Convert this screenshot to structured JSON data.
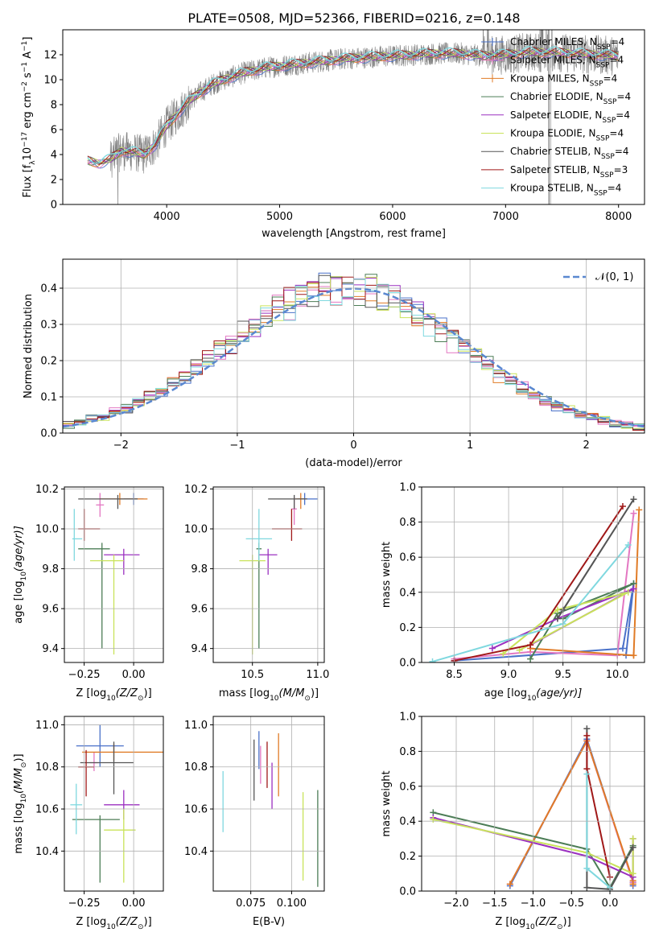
{
  "figure": {
    "title": "PLATE=0508, MJD=52366, FIBERID=0216, z=0.148"
  },
  "styles": [
    {
      "name": "Chabrier MILES, N_SSP=4",
      "label_main": "Chabrier MILES, N",
      "label_sub": "SSP",
      "label_tail": "=4",
      "color": "#4a71c9"
    },
    {
      "name": "Salpeter MILES, N_SSP=4",
      "label_main": "Salpeter MILES, N",
      "label_sub": "SSP",
      "label_tail": "=4",
      "color": "#e377c2"
    },
    {
      "name": "Kroupa MILES, N_SSP=4",
      "label_main": "Kroupa MILES, N",
      "label_sub": "SSP",
      "label_tail": "=4",
      "color": "#e07b26"
    },
    {
      "name": "Chabrier ELODIE, N_SSP=4",
      "label_main": "Chabrier ELODIE, N",
      "label_sub": "SSP",
      "label_tail": "=4",
      "color": "#4c7d56"
    },
    {
      "name": "Salpeter ELODIE, N_SSP=4",
      "label_main": "Salpeter ELODIE, N",
      "label_sub": "SSP",
      "label_tail": "=4",
      "color": "#9b30c0"
    },
    {
      "name": "Kroupa ELODIE, N_SSP=4",
      "label_main": "Kroupa ELODIE, N",
      "label_sub": "SSP",
      "label_tail": "=4",
      "color": "#c9e35a"
    },
    {
      "name": "Chabrier STELIB, N_SSP=4",
      "label_main": "Chabrier STELIB, N",
      "label_sub": "SSP",
      "label_tail": "=4",
      "color": "#555555"
    },
    {
      "name": "Salpeter STELIB, N_SSP=3",
      "label_main": "Salpeter STELIB, N",
      "label_sub": "SSP",
      "label_tail": "=3",
      "color": "#a01818"
    },
    {
      "name": "Kroupa STELIB, N_SSP=4",
      "label_main": "Kroupa STELIB, N",
      "label_sub": "SSP",
      "label_tail": "=4",
      "color": "#7fd8df"
    }
  ],
  "chart_data": [
    {
      "id": "spectrum",
      "type": "line",
      "xlabel": "wavelength [Angstrom, rest frame]",
      "ylabel_pre": "Flux [f",
      "ylabel_sub": "λ",
      "ylabel_mid": "10",
      "ylabel_sup1": "−17",
      "ylabel_mid2": " erg cm",
      "ylabel_sup2": "−2",
      "ylabel_mid3": " s",
      "ylabel_sup3": "−1",
      "ylabel_mid4": " A",
      "ylabel_sup4": "−1",
      "ylabel_end": "]",
      "xlim": [
        3080,
        8230
      ],
      "ylim": [
        0,
        14
      ],
      "xticks": [
        4000,
        5000,
        6000,
        7000,
        8000
      ],
      "yticks": [
        0,
        2,
        4,
        6,
        8,
        10,
        12
      ],
      "data_color": "#808080",
      "continuum": {
        "x": [
          3300,
          3400,
          3500,
          3600,
          3700,
          3800,
          3900,
          4000,
          4100,
          4200,
          4300,
          4400,
          4500,
          4600,
          4700,
          4800,
          4900,
          5000,
          5200,
          5400,
          5600,
          5800,
          6000,
          6200,
          6400,
          6600,
          6800,
          7000,
          7200,
          7400,
          7600,
          7800,
          8000
        ],
        "y": [
          3.5,
          3.3,
          3.6,
          4.3,
          4.2,
          4.0,
          4.8,
          6.3,
          7.3,
          8.3,
          9.0,
          9.6,
          10.0,
          10.3,
          10.6,
          10.8,
          11.0,
          11.1,
          11.3,
          11.5,
          11.7,
          11.8,
          11.9,
          12.0,
          12.1,
          12.1,
          11.9,
          12.0,
          12.2,
          12.2,
          12.1,
          12.0,
          11.9
        ]
      }
    },
    {
      "id": "residuals",
      "type": "histogram",
      "xlabel": "(data-model)/error",
      "ylabel": "Normed distribution",
      "xlim": [
        -2.5,
        2.5
      ],
      "ylim": [
        0,
        0.48
      ],
      "xticks": [
        -2,
        -1,
        0,
        1,
        2
      ],
      "yticks": [
        0.0,
        0.1,
        0.2,
        0.3,
        0.4
      ],
      "bin_width": 0.1,
      "normal_label": "𝒩(0, 1)",
      "normal_color": "#5a88d0"
    },
    {
      "id": "age_vs_Z",
      "type": "scatter",
      "xlabel_pre": "Z [log",
      "xlabel_sub": "10",
      "xlabel_main": "(Z/Z",
      "xlabel_sub2": "⊙",
      "xlabel_end": ")]",
      "ylabel_pre": "age  [log",
      "ylabel_sub": "10",
      "ylabel_end": "(age/yr)]",
      "xlim": [
        -0.35,
        0.15
      ],
      "ylim": [
        9.33,
        10.21
      ],
      "xticks": [
        -0.25,
        0.0
      ],
      "xticklabels": [
        "−0.25",
        "0.00"
      ],
      "yticks": [
        9.4,
        9.6,
        9.8,
        10.0,
        10.2
      ],
      "points": [
        {
          "s": 0,
          "x": 0.0,
          "xe": [
            0.05,
            0.05
          ],
          "y": 10.15,
          "ye": [
            0.03,
            0.03
          ]
        },
        {
          "s": 1,
          "x": -0.17,
          "xe": [
            0.02,
            0.02
          ],
          "y": 10.12,
          "ye": [
            0.06,
            0.06
          ]
        },
        {
          "s": 2,
          "x": -0.07,
          "xe": [
            0.1,
            0.14
          ],
          "y": 10.15,
          "ye": [
            0.03,
            0.03
          ]
        },
        {
          "s": 3,
          "x": -0.16,
          "xe": [
            0.12,
            0.04
          ],
          "y": 9.9,
          "ye": [
            0.5,
            0.03
          ]
        },
        {
          "s": 4,
          "x": -0.05,
          "xe": [
            0.1,
            0.08
          ],
          "y": 9.87,
          "ye": [
            0.1,
            0.03
          ]
        },
        {
          "s": 5,
          "x": -0.1,
          "xe": [
            0.12,
            0.05
          ],
          "y": 9.84,
          "ye": [
            0.47,
            0.03
          ]
        },
        {
          "s": 6,
          "x": -0.08,
          "xe": [
            0.2,
            0.1
          ],
          "y": 10.15,
          "ye": [
            0.05,
            0.02
          ]
        },
        {
          "s": 7,
          "x": -0.25,
          "xe": [
            0.03,
            0.08
          ],
          "y": 10.0,
          "ye": [
            0.06,
            0.1
          ]
        },
        {
          "s": 8,
          "x": -0.3,
          "xe": [
            0.01,
            0.04
          ],
          "y": 9.95,
          "ye": [
            0.11,
            0.15
          ]
        }
      ]
    },
    {
      "id": "age_vs_mass",
      "type": "scatter",
      "xlabel_pre": "mass [log",
      "xlabel_sub": "10",
      "xlabel_main": "(M/M",
      "xlabel_sub2": "⊙",
      "xlabel_end": ")]",
      "xlim": [
        10.2,
        11.05
      ],
      "ylim": [
        9.33,
        10.21
      ],
      "xticks": [
        10.5,
        11.0
      ],
      "xticklabels": [
        "10.5",
        "11.0"
      ],
      "yticks": [
        9.4,
        9.6,
        9.8,
        10.0,
        10.2
      ],
      "points": [
        {
          "s": 0,
          "x": 10.9,
          "xe": [
            0.05,
            0.1
          ],
          "y": 10.15,
          "ye": [
            0.03,
            0.03
          ]
        },
        {
          "s": 1,
          "x": 10.82,
          "xe": [
            0.02,
            0.02
          ],
          "y": 10.1,
          "ye": [
            0.08,
            0.06
          ]
        },
        {
          "s": 2,
          "x": 10.87,
          "xe": [
            0.04,
            0.04
          ],
          "y": 10.15,
          "ye": [
            0.05,
            0.03
          ]
        },
        {
          "s": 3,
          "x": 10.55,
          "xe": [
            0.02,
            0.02
          ],
          "y": 9.9,
          "ye": [
            0.5,
            0.03
          ]
        },
        {
          "s": 4,
          "x": 10.62,
          "xe": [
            0.07,
            0.07
          ],
          "y": 9.87,
          "ye": [
            0.1,
            0.03
          ]
        },
        {
          "s": 5,
          "x": 10.5,
          "xe": [
            0.1,
            0.1
          ],
          "y": 9.84,
          "ye": [
            0.47,
            0.03
          ]
        },
        {
          "s": 6,
          "x": 10.82,
          "xe": [
            0.2,
            0.1
          ],
          "y": 10.15,
          "ye": [
            0.05,
            0.02
          ]
        },
        {
          "s": 7,
          "x": 10.8,
          "xe": [
            0.15,
            0.08
          ],
          "y": 10.0,
          "ye": [
            0.06,
            0.1
          ]
        },
        {
          "s": 8,
          "x": 10.55,
          "xe": [
            0.1,
            0.1
          ],
          "y": 9.95,
          "ye": [
            0.11,
            0.15
          ]
        }
      ]
    },
    {
      "id": "weight_vs_age",
      "type": "line",
      "xlabel_pre": "age  [log",
      "xlabel_sub": "10",
      "xlabel_end": "(age/yr)]",
      "ylabel": "mass weight",
      "xlim": [
        8.2,
        10.25
      ],
      "ylim": [
        0,
        1.0
      ],
      "xticks": [
        8.5,
        9.0,
        9.5,
        10.0
      ],
      "xticklabels": [
        "8.5",
        "9.0",
        "9.5",
        "10.0"
      ],
      "yticks": [
        0.0,
        0.2,
        0.4,
        0.6,
        0.8,
        1.0
      ],
      "series": [
        {
          "s": 0,
          "x": [
            8.5,
            10.05,
            10.15,
            10.08
          ],
          "y": [
            0.01,
            0.08,
            0.45,
            0.04
          ]
        },
        {
          "s": 1,
          "x": [
            8.5,
            9.2,
            10.0,
            10.15
          ],
          "y": [
            0.02,
            0.06,
            0.04,
            0.85
          ]
        },
        {
          "s": 2,
          "x": [
            9.2,
            10.15,
            10.2,
            10.15
          ],
          "y": [
            0.08,
            0.04,
            0.87,
            0.04
          ]
        },
        {
          "s": 3,
          "x": [
            9.2,
            9.45,
            10.15,
            9.5
          ],
          "y": [
            0.02,
            0.28,
            0.45,
            0.25
          ]
        },
        {
          "s": 4,
          "x": [
            8.85,
            9.45,
            10.15,
            9.2
          ],
          "y": [
            0.08,
            0.25,
            0.42,
            0.1
          ]
        },
        {
          "s": 5,
          "x": [
            8.95,
            9.45,
            10.1,
            9.1
          ],
          "y": [
            0.05,
            0.3,
            0.4,
            0.07
          ]
        },
        {
          "s": 6,
          "x": [
            9.45,
            10.15,
            9.5
          ],
          "y": [
            0.25,
            0.93,
            0.3
          ]
        },
        {
          "s": 7,
          "x": [
            8.5,
            9.2,
            10.05
          ],
          "y": [
            0.01,
            0.1,
            0.89
          ]
        },
        {
          "s": 8,
          "x": [
            8.3,
            9.5,
            10.1
          ],
          "y": [
            0.005,
            0.22,
            0.67
          ]
        }
      ]
    },
    {
      "id": "mass_vs_Z",
      "type": "scatter",
      "xlabel_pre": "Z [log",
      "xlabel_sub": "10",
      "xlabel_main": "(Z/Z",
      "xlabel_sub2": "⊙",
      "xlabel_end": ")]",
      "ylabel_pre": "mass [log",
      "ylabel_sub": "10",
      "ylabel_main": "(M/M",
      "ylabel_sub2": "⊙",
      "ylabel_end": ")]",
      "xlim": [
        -0.35,
        0.15
      ],
      "ylim": [
        10.21,
        11.04
      ],
      "xticks": [
        -0.25,
        0.0
      ],
      "xticklabels": [
        "−0.25",
        "0.00"
      ],
      "yticks": [
        10.4,
        10.6,
        10.8,
        11.0
      ],
      "points": [
        {
          "s": 0,
          "x": -0.17,
          "xe": [
            0.12,
            0.12
          ],
          "y": 10.9,
          "ye": [
            0.1,
            0.1
          ]
        },
        {
          "s": 1,
          "x": -0.2,
          "xe": [
            0.02,
            0.02
          ],
          "y": 10.82,
          "ye": [
            0.04,
            0.05
          ]
        },
        {
          "s": 2,
          "x": -0.1,
          "xe": [
            0.16,
            0.25
          ],
          "y": 10.87,
          "ye": [
            0.04,
            0.04
          ]
        },
        {
          "s": 3,
          "x": -0.17,
          "xe": [
            0.14,
            0.1
          ],
          "y": 10.55,
          "ye": [
            0.3,
            0.02
          ]
        },
        {
          "s": 4,
          "x": -0.05,
          "xe": [
            0.1,
            0.08
          ],
          "y": 10.62,
          "ye": [
            0.07,
            0.07
          ]
        },
        {
          "s": 5,
          "x": -0.05,
          "xe": [
            0.1,
            0.06
          ],
          "y": 10.5,
          "ye": [
            0.25,
            0.1
          ]
        },
        {
          "s": 6,
          "x": -0.1,
          "xe": [
            0.17,
            0.1
          ],
          "y": 10.82,
          "ye": [
            0.15,
            0.1
          ]
        },
        {
          "s": 7,
          "x": -0.24,
          "xe": [
            0.04,
            0.04
          ],
          "y": 10.8,
          "ye": [
            0.14,
            0.08
          ]
        },
        {
          "s": 8,
          "x": -0.29,
          "xe": [
            0.03,
            0.03
          ],
          "y": 10.62,
          "ye": [
            0.14,
            0.1
          ]
        }
      ]
    },
    {
      "id": "mass_vs_ebv",
      "type": "scatter",
      "xlabel": "E(B-V)",
      "xlim": [
        0.052,
        0.12
      ],
      "ylim": [
        10.21,
        11.04
      ],
      "xticks": [
        0.075,
        0.1
      ],
      "xticklabels": [
        "0.075",
        "0.100"
      ],
      "yticks": [
        10.4,
        10.6,
        10.8,
        11.0
      ],
      "points": [
        {
          "s": 0,
          "x": 0.08,
          "xe": [
            0,
            0
          ],
          "y": 10.87,
          "ye": [
            0.08,
            0.1
          ]
        },
        {
          "s": 1,
          "x": 0.081,
          "xe": [
            0,
            0
          ],
          "y": 10.8,
          "ye": [
            0.08,
            0.1
          ]
        },
        {
          "s": 2,
          "x": 0.092,
          "xe": [
            0,
            0
          ],
          "y": 10.8,
          "ye": [
            0.14,
            0.16
          ]
        },
        {
          "s": 3,
          "x": 0.116,
          "xe": [
            0,
            0
          ],
          "y": 10.47,
          "ye": [
            0.24,
            0.22
          ]
        },
        {
          "s": 4,
          "x": 0.088,
          "xe": [
            0,
            0
          ],
          "y": 10.7,
          "ye": [
            0.1,
            0.12
          ]
        },
        {
          "s": 5,
          "x": 0.107,
          "xe": [
            0,
            0
          ],
          "y": 10.46,
          "ye": [
            0.2,
            0.22
          ]
        },
        {
          "s": 6,
          "x": 0.077,
          "xe": [
            0,
            0
          ],
          "y": 10.78,
          "ye": [
            0.14,
            0.15
          ]
        },
        {
          "s": 7,
          "x": 0.085,
          "xe": [
            0,
            0
          ],
          "y": 10.8,
          "ye": [
            0.1,
            0.12
          ]
        },
        {
          "s": 8,
          "x": 0.058,
          "xe": [
            0,
            0
          ],
          "y": 10.63,
          "ye": [
            0.14,
            0.15
          ]
        }
      ]
    },
    {
      "id": "weight_vs_Z",
      "type": "line",
      "xlabel_pre": "Z [log",
      "xlabel_sub": "10",
      "xlabel_main": "(Z/Z",
      "xlabel_sub2": "⊙",
      "xlabel_end": ")]",
      "ylabel": "mass weight",
      "xlim": [
        -2.45,
        0.45
      ],
      "ylim": [
        0,
        1.0
      ],
      "xticks": [
        -2.0,
        -1.5,
        -1.0,
        -0.5,
        0.0
      ],
      "xticklabels": [
        "−2.0",
        "−1.5",
        "−1.0",
        "−0.5",
        "0.0"
      ],
      "yticks": [
        0.0,
        0.2,
        0.4,
        0.6,
        0.8,
        1.0
      ],
      "series": [
        {
          "s": 0,
          "x": [
            -1.3,
            -0.3,
            0.3,
            0.3
          ],
          "y": [
            0.03,
            0.87,
            0.05,
            0.03
          ]
        },
        {
          "s": 1,
          "x": [
            -1.3,
            -0.3,
            0.3,
            0.3
          ],
          "y": [
            0.04,
            0.86,
            0.05,
            0.04
          ]
        },
        {
          "s": 2,
          "x": [
            -1.3,
            -0.3,
            0.3,
            0.3
          ],
          "y": [
            0.04,
            0.86,
            0.06,
            0.04
          ]
        },
        {
          "s": 3,
          "x": [
            -2.3,
            -0.3,
            0.0,
            0.3
          ],
          "y": [
            0.45,
            0.24,
            0.02,
            0.26
          ]
        },
        {
          "s": 4,
          "x": [
            -2.3,
            -0.3,
            0.3,
            0.3
          ],
          "y": [
            0.42,
            0.2,
            0.08,
            0.3
          ]
        },
        {
          "s": 5,
          "x": [
            -2.3,
            -0.3,
            0.3,
            0.3
          ],
          "y": [
            0.41,
            0.22,
            0.1,
            0.3
          ]
        },
        {
          "s": 6,
          "x": [
            -0.3,
            -0.3,
            0.0,
            0.3
          ],
          "y": [
            0.93,
            0.02,
            0.01,
            0.25
          ]
        },
        {
          "s": 7,
          "x": [
            -0.3,
            -0.3,
            0.0
          ],
          "y": [
            0.89,
            0.7,
            0.08
          ]
        },
        {
          "s": 8,
          "x": [
            -0.3,
            -0.3,
            0.0
          ],
          "y": [
            0.67,
            0.13,
            0.02
          ]
        }
      ]
    }
  ]
}
